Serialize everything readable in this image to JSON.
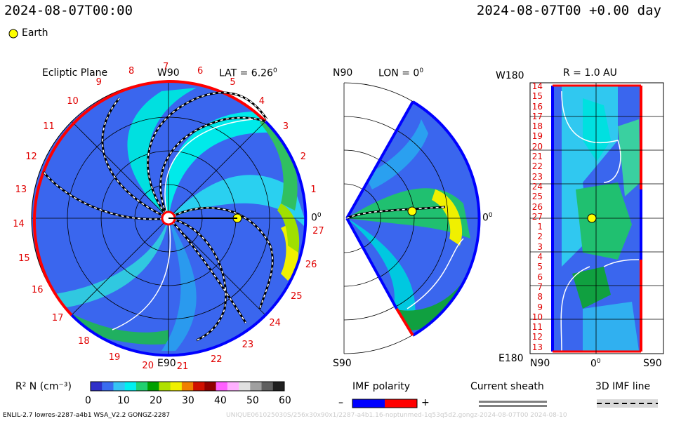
{
  "header": {
    "left_timestamp": "2024-08-07T00:00",
    "right_timestamp": "2024-08-07T00 +0.00 day",
    "earth_label": "Earth"
  },
  "panels": {
    "ecliptic": {
      "title": "Ecliptic Plane",
      "lat_label": "LAT = 6.26",
      "top_label": "W90",
      "bottom_label": "E90",
      "right_label": "0",
      "zero_sup": "0",
      "lat_sup": "0",
      "sector_numbers": [
        "1",
        "2",
        "3",
        "4",
        "5",
        "6",
        "7",
        "8",
        "9",
        "10",
        "11",
        "12",
        "13",
        "14",
        "15",
        "16",
        "17",
        "18",
        "19",
        "20",
        "21",
        "22",
        "23",
        "24",
        "25",
        "26",
        "27"
      ]
    },
    "meridional": {
      "top_label": "N90",
      "bottom_label": "S90",
      "lon_label": "LON = 0",
      "lon_sup": "0",
      "right_label": "0",
      "right_sup": "0"
    },
    "latlon": {
      "top_left_label": "W180",
      "bottom_left_label": "E180",
      "title": "R = 1.0 AU",
      "bottom_labels": [
        "N90",
        "0",
        "S90"
      ],
      "zero_sup": "0",
      "row_numbers": [
        "14",
        "15",
        "16",
        "17",
        "18",
        "19",
        "20",
        "21",
        "22",
        "23",
        "24",
        "25",
        "26",
        "27",
        "1",
        "2",
        "3",
        "4",
        "5",
        "6",
        "7",
        "8",
        "9",
        "10",
        "11",
        "12",
        "13"
      ]
    }
  },
  "colorbar": {
    "label": "R² N (cm⁻³)",
    "ticks": [
      "0",
      "10",
      "20",
      "30",
      "40",
      "50",
      "60"
    ],
    "colors": [
      "#2f2fc8",
      "#3a6cf0",
      "#35c4f5",
      "#00f0f0",
      "#20d070",
      "#00a000",
      "#b0e000",
      "#f0f000",
      "#f08000",
      "#d01000",
      "#900000",
      "#ff60ff",
      "#ffb0ff",
      "#e0e0e0",
      "#a0a0a0",
      "#606060",
      "#202020"
    ]
  },
  "legends": {
    "imf_polarity": {
      "title": "IMF polarity",
      "minus": "–",
      "plus": "+",
      "neg_color": "#0000ff",
      "pos_color": "#ff0000"
    },
    "current_sheath": {
      "title": "Current sheath"
    },
    "imf_line": {
      "title": "3D IMF line"
    }
  },
  "footer": {
    "left": "ENLIL-2.7 lowres-2287-a4b1 WSA_V2.2 GONGZ-2287",
    "right": "UNIQUE061025030S/256x30x90x1/2287-a4b1.16-noptunmed-1q53q5d2.gongz-2024-08-07T00   2024-08-10"
  },
  "chart_data": {
    "type": "heatmap",
    "title": "R² N (cm⁻³)",
    "colorbar_range": [
      0,
      60
    ],
    "earth": {
      "lat_deg": 6.26,
      "lon_deg": 0,
      "r_au": 1.0
    },
    "timestamp": "2024-08-07T00:00",
    "offset_day": 0.0
  }
}
